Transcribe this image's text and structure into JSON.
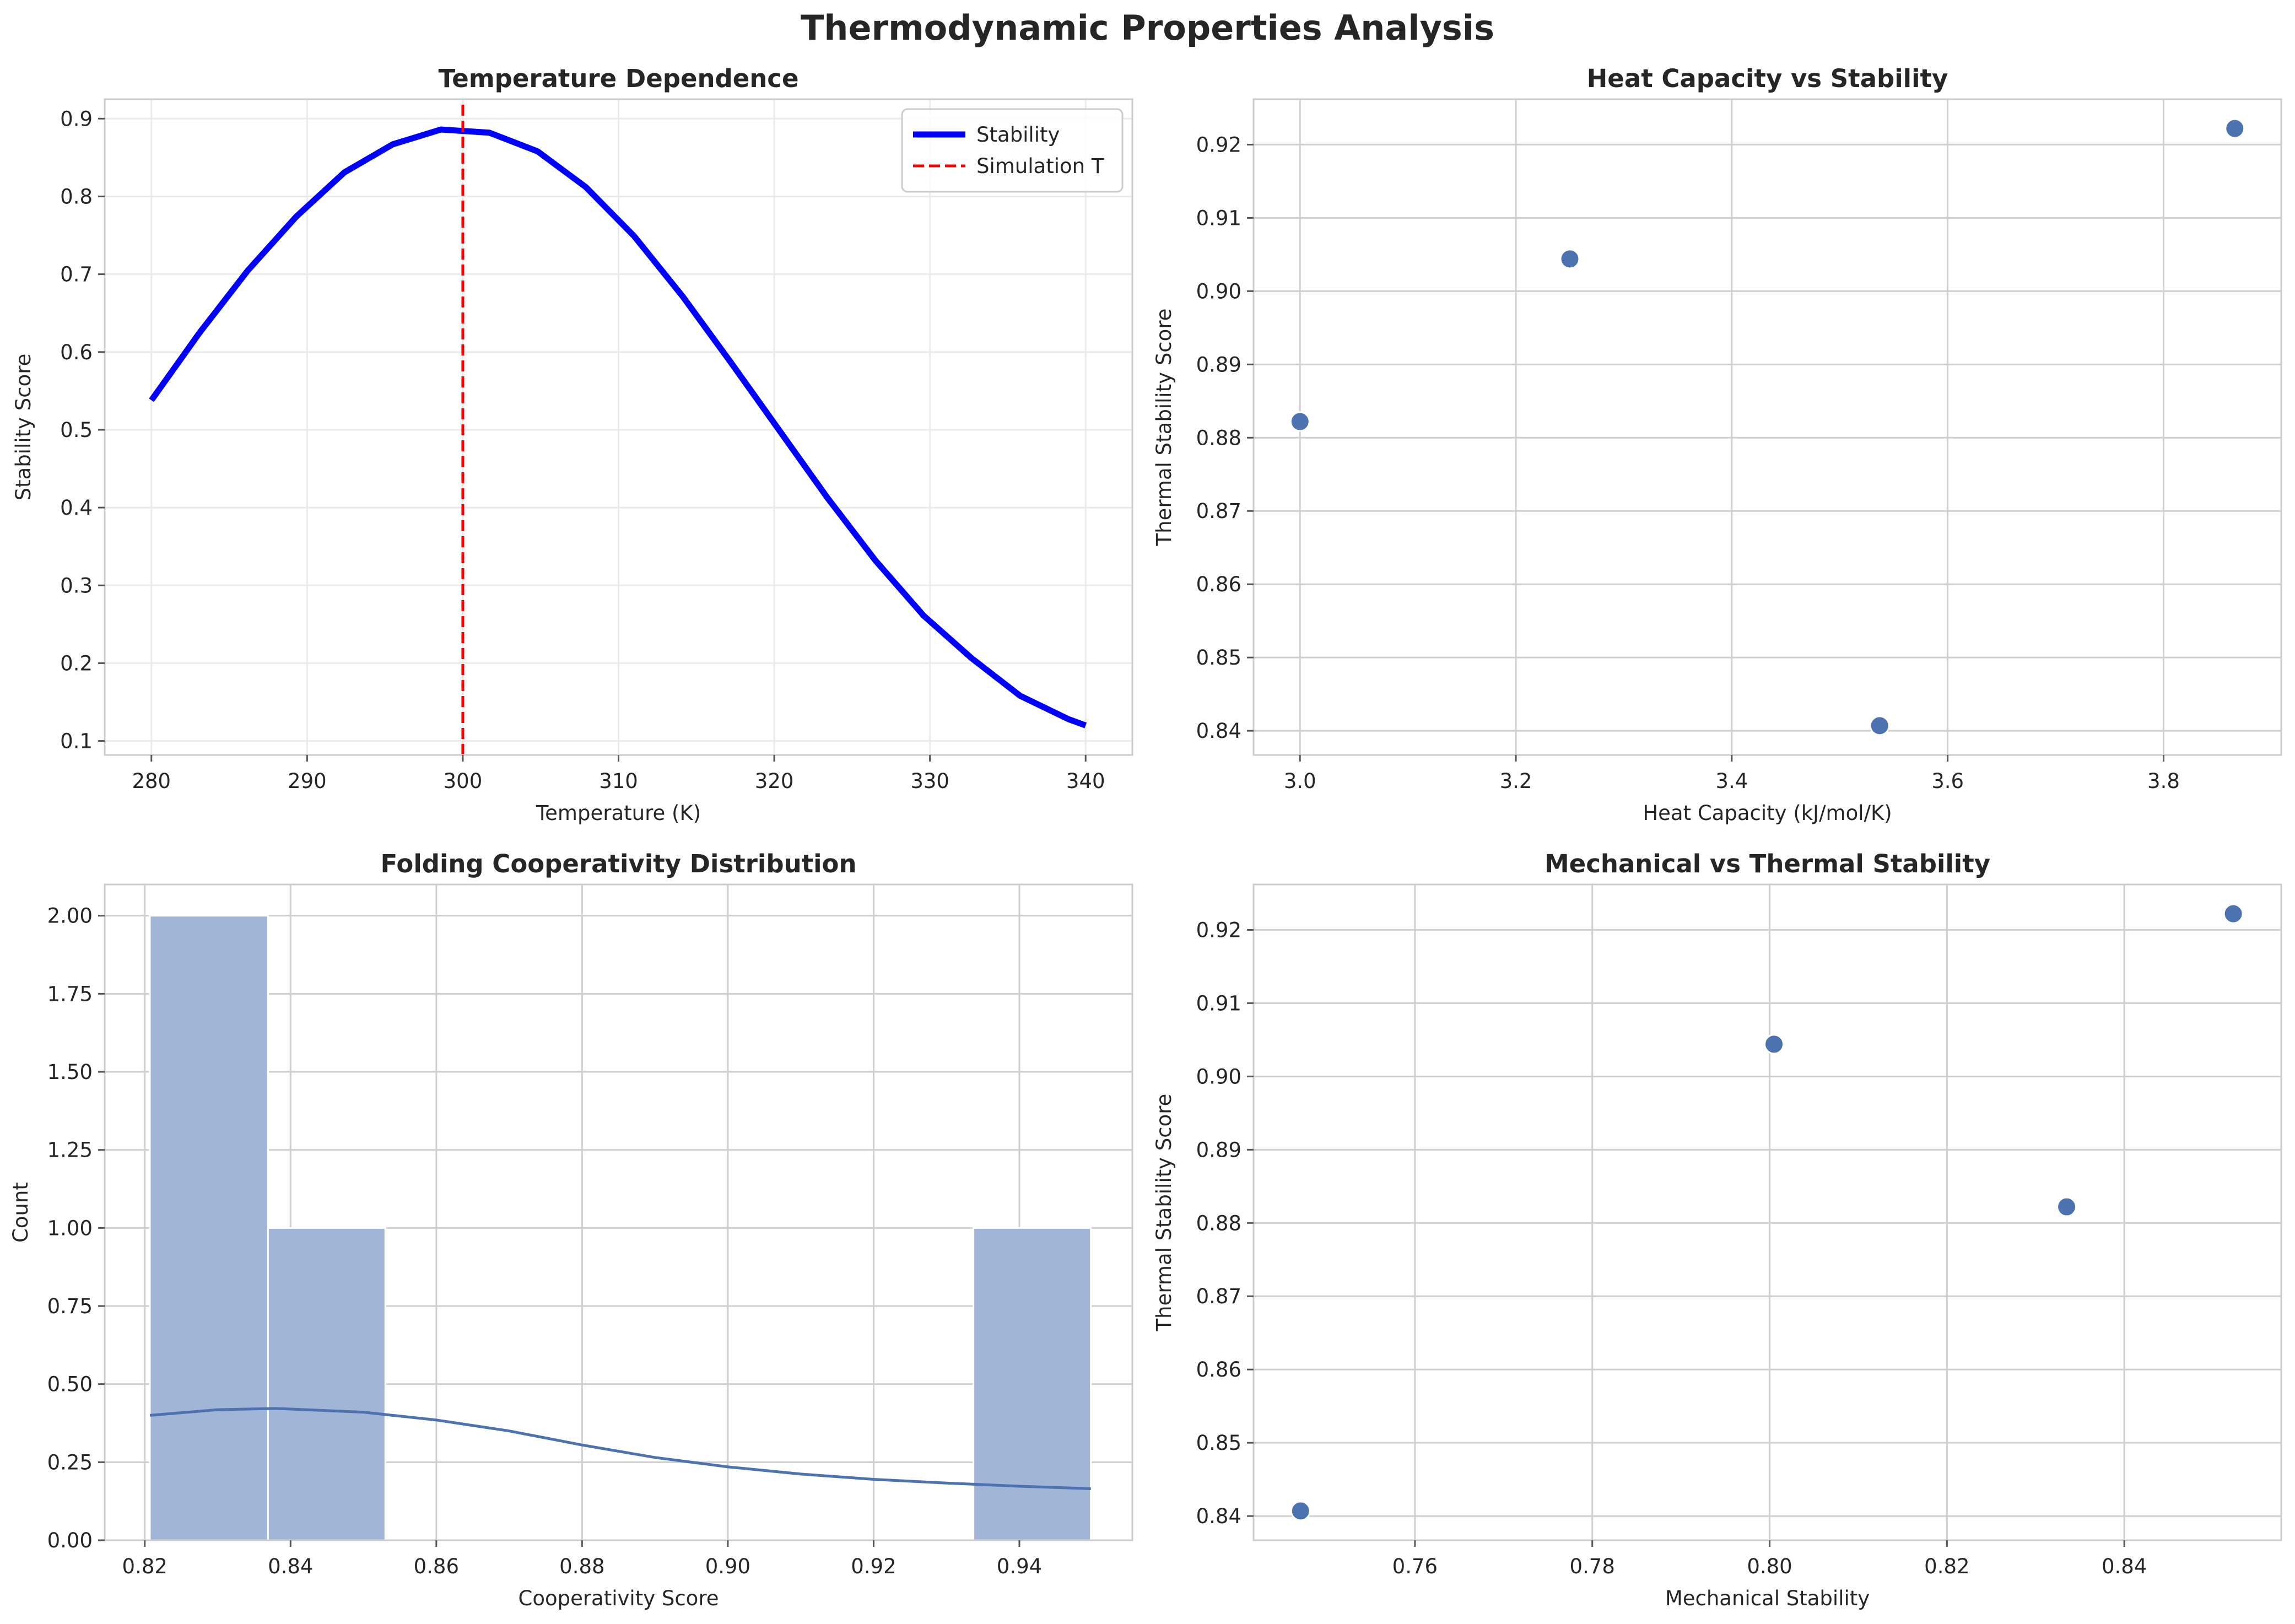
{
  "figure": {
    "suptitle": "Thermodynamic Properties Analysis"
  },
  "colors": {
    "stability_line": "#0000ff",
    "simulation_line": "#ff0000",
    "scatter_points": "#4c72b0",
    "histogram_bars": "#a1b5d6",
    "kde_line": "#4c72b0",
    "grid": "#e6e6e6",
    "axes_edge": "#cccccc"
  },
  "chart_data": [
    {
      "type": "line",
      "title": "Temperature Dependence",
      "xlabel": "Temperature (K)",
      "ylabel": "Stability Score",
      "xlim": [
        277,
        343
      ],
      "ylim": [
        0.082,
        0.925
      ],
      "xticks": [
        280,
        290,
        300,
        310,
        320,
        330,
        340
      ],
      "yticks": [
        0.1,
        0.2,
        0.3,
        0.4,
        0.5,
        0.6,
        0.7,
        0.8,
        0.9
      ],
      "ytick_labels": [
        "0.1",
        "0.2",
        "0.3",
        "0.4",
        "0.5",
        "0.6",
        "0.7",
        "0.8",
        "0.9"
      ],
      "grid": true,
      "legend": "top-right",
      "series": [
        {
          "name": "Stability",
          "x": [
            280,
            283.1,
            286.2,
            289.3,
            292.4,
            295.5,
            298.6,
            301.7,
            304.8,
            307.9,
            311.0,
            314.1,
            317.2,
            320.3,
            323.4,
            326.5,
            329.6,
            332.7,
            335.8,
            338.9,
            340
          ],
          "y": [
            0.538,
            0.625,
            0.705,
            0.774,
            0.831,
            0.867,
            0.886,
            0.882,
            0.858,
            0.812,
            0.749,
            0.672,
            0.587,
            0.5,
            0.413,
            0.332,
            0.261,
            0.206,
            0.158,
            0.128,
            0.12
          ]
        },
        {
          "name": "Simulation T",
          "style": "dashed-vertical",
          "x": [
            300,
            300
          ],
          "y": [
            0.082,
            0.925
          ]
        }
      ]
    },
    {
      "type": "scatter",
      "title": "Heat Capacity vs Stability",
      "xlabel": "Heat Capacity (kJ/mol/K)",
      "ylabel": "Thermal Stability Score",
      "xlim": [
        2.957,
        3.909
      ],
      "ylim": [
        0.8367,
        0.9262
      ],
      "xticks": [
        3.0,
        3.2,
        3.4,
        3.6,
        3.8
      ],
      "xtick_labels": [
        "3.0",
        "3.2",
        "3.4",
        "3.6",
        "3.8"
      ],
      "yticks": [
        0.84,
        0.85,
        0.86,
        0.87,
        0.88,
        0.89,
        0.9,
        0.91,
        0.92
      ],
      "ytick_labels": [
        "0.84",
        "0.85",
        "0.86",
        "0.87",
        "0.88",
        "0.89",
        "0.90",
        "0.91",
        "0.92"
      ],
      "grid": true,
      "points": [
        {
          "x": 3.0,
          "y": 0.8822
        },
        {
          "x": 3.25,
          "y": 0.9044
        },
        {
          "x": 3.537,
          "y": 0.8407
        },
        {
          "x": 3.866,
          "y": 0.9222
        }
      ]
    },
    {
      "type": "bar",
      "subtype": "histogram",
      "title": "Folding Cooperativity Distribution",
      "xlabel": "Cooperativity Score",
      "ylabel": "Count",
      "xlim": [
        0.8145,
        0.9555
      ],
      "ylim": [
        0,
        2.1
      ],
      "xticks": [
        0.82,
        0.84,
        0.86,
        0.88,
        0.9,
        0.92,
        0.94
      ],
      "xtick_labels": [
        "0.82",
        "0.84",
        "0.86",
        "0.88",
        "0.90",
        "0.92",
        "0.94"
      ],
      "yticks": [
        0,
        0.25,
        0.5,
        0.75,
        1.0,
        1.25,
        1.5,
        1.75,
        2.0
      ],
      "ytick_labels": [
        "0.00",
        "0.25",
        "0.50",
        "0.75",
        "1.00",
        "1.25",
        "1.50",
        "1.75",
        "2.00"
      ],
      "grid": true,
      "bins": [
        {
          "x0": 0.8207,
          "x1": 0.8369,
          "count": 2
        },
        {
          "x0": 0.8369,
          "x1": 0.853,
          "count": 1
        },
        {
          "x0": 0.853,
          "x1": 0.8691,
          "count": 0
        },
        {
          "x0": 0.8691,
          "x1": 0.8853,
          "count": 0
        },
        {
          "x0": 0.8853,
          "x1": 0.9014,
          "count": 0
        },
        {
          "x0": 0.9014,
          "x1": 0.9175,
          "count": 0
        },
        {
          "x0": 0.9175,
          "x1": 0.9337,
          "count": 0
        },
        {
          "x0": 0.9337,
          "x1": 0.9498,
          "count": 1
        }
      ],
      "kde": {
        "x": [
          0.8207,
          0.83,
          0.838,
          0.85,
          0.86,
          0.87,
          0.88,
          0.89,
          0.9,
          0.91,
          0.92,
          0.93,
          0.94,
          0.9498
        ],
        "y": [
          0.4,
          0.418,
          0.422,
          0.41,
          0.385,
          0.35,
          0.305,
          0.265,
          0.235,
          0.212,
          0.195,
          0.183,
          0.173,
          0.165
        ]
      }
    },
    {
      "type": "scatter",
      "title": "Mechanical vs Thermal Stability",
      "xlabel": "Mechanical Stability",
      "ylabel": "Thermal Stability Score",
      "xlim": [
        0.7418,
        0.8577
      ],
      "ylim": [
        0.8367,
        0.9262
      ],
      "xticks": [
        0.76,
        0.78,
        0.8,
        0.82,
        0.84
      ],
      "xtick_labels": [
        "0.76",
        "0.78",
        "0.80",
        "0.82",
        "0.84"
      ],
      "yticks": [
        0.84,
        0.85,
        0.86,
        0.87,
        0.88,
        0.89,
        0.9,
        0.91,
        0.92
      ],
      "ytick_labels": [
        "0.84",
        "0.85",
        "0.86",
        "0.87",
        "0.88",
        "0.89",
        "0.90",
        "0.91",
        "0.92"
      ],
      "grid": true,
      "points": [
        {
          "x": 0.7471,
          "y": 0.8407
        },
        {
          "x": 0.8005,
          "y": 0.9044
        },
        {
          "x": 0.8335,
          "y": 0.8822
        },
        {
          "x": 0.8523,
          "y": 0.9222
        }
      ]
    }
  ]
}
